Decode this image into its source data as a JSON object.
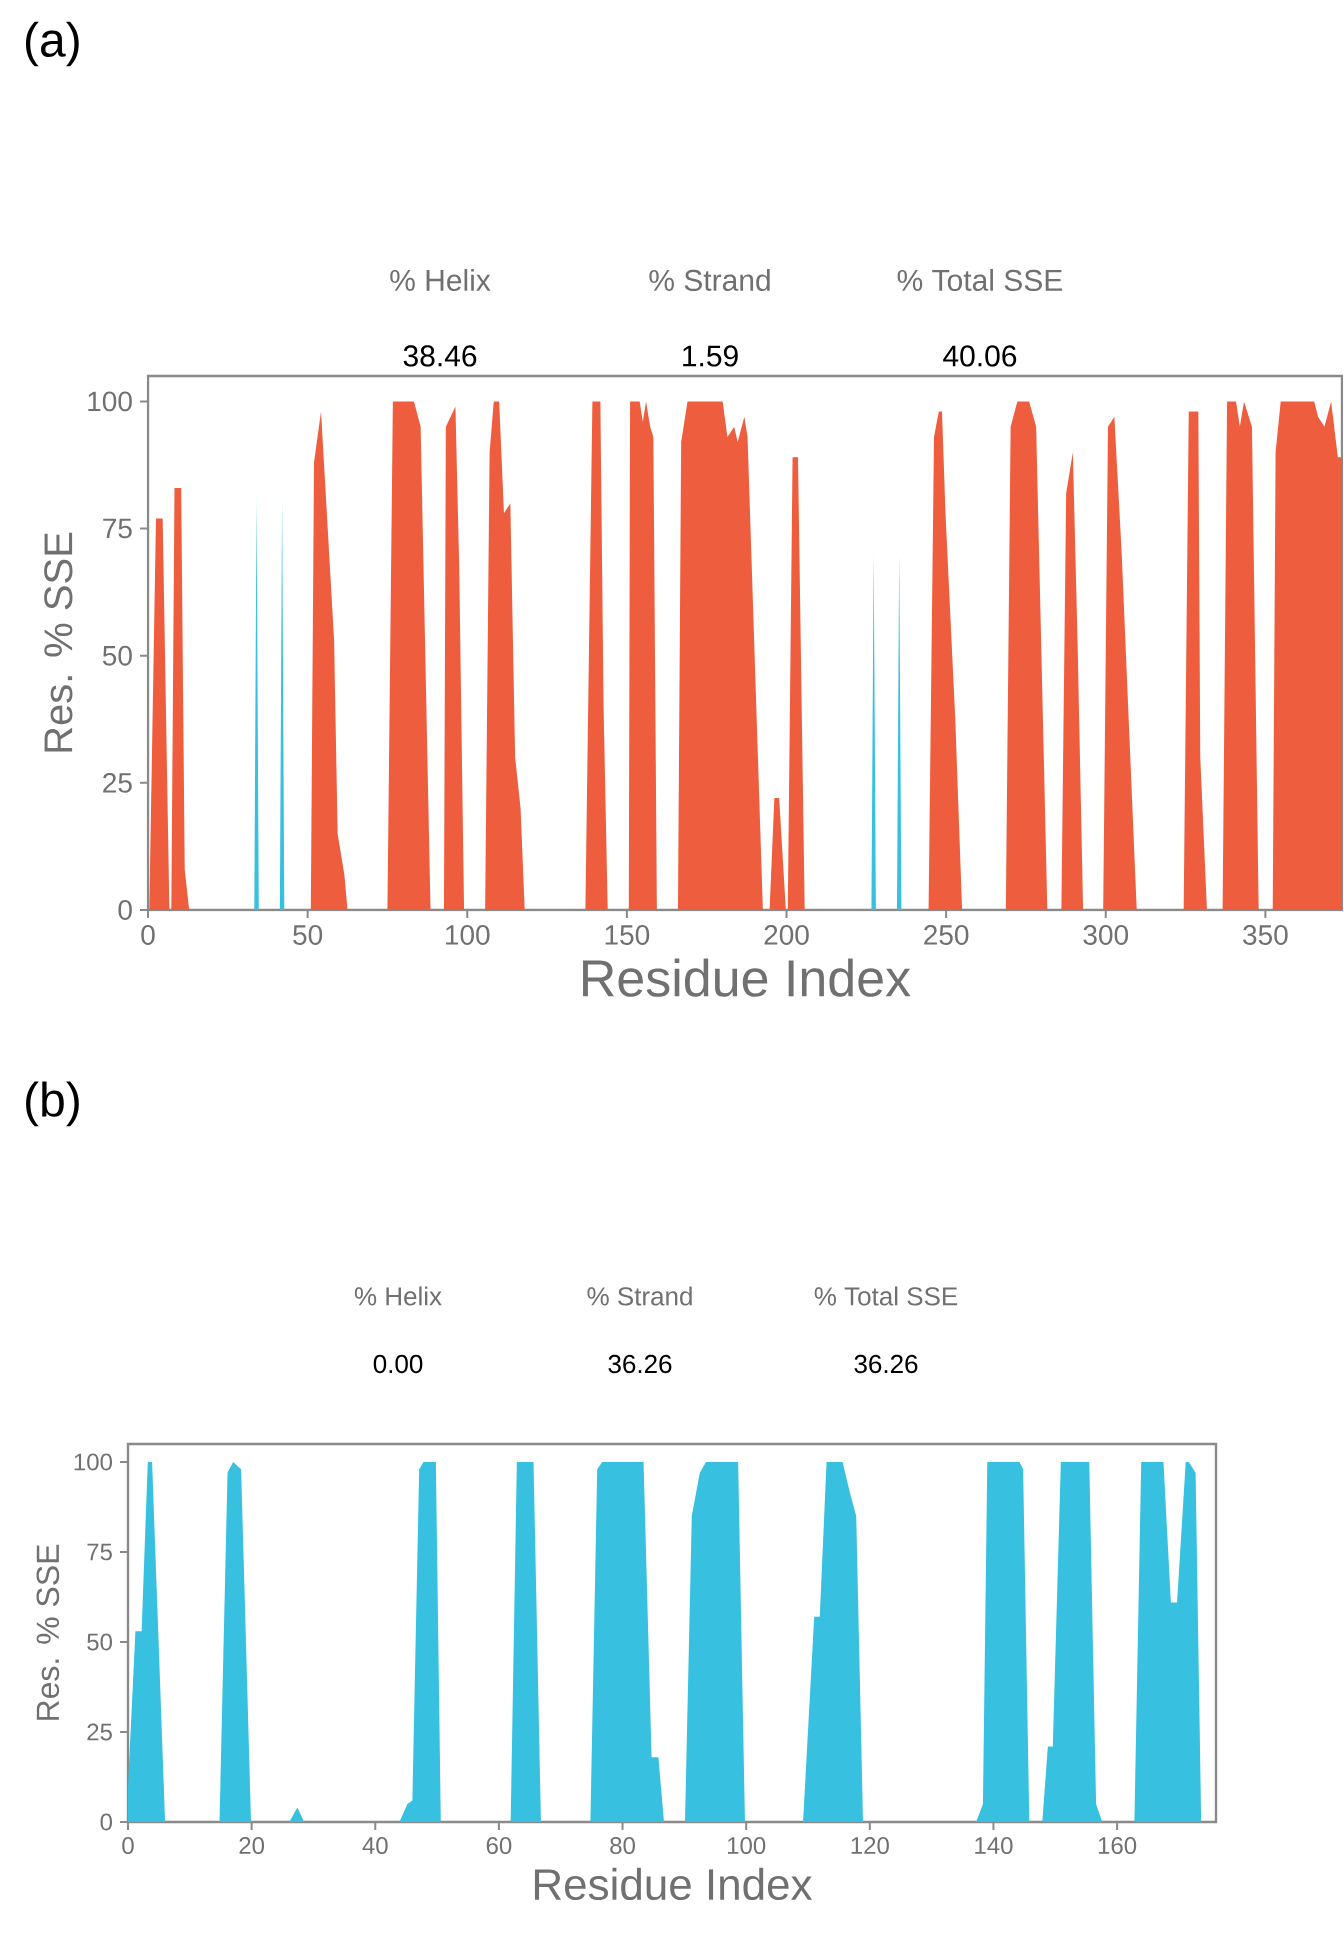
{
  "chart_data": [
    {
      "type": "area",
      "title": "(a)",
      "xlabel": "Residue Index",
      "ylabel": "Res. % SSE",
      "annotations": [
        "% Helix",
        "% Strand",
        "% Total SSE",
        "38.46",
        "1.59",
        "40.06"
      ],
      "xlim": [
        0,
        374
      ],
      "xticks": [
        0,
        50,
        100,
        150,
        200,
        250,
        300,
        350
      ],
      "ylim": [
        0,
        105
      ],
      "yticks": [
        0,
        25,
        50,
        75,
        100
      ],
      "series": [
        {
          "color": "#ee5e3e",
          "x": [
            0.4,
            2.5,
            4.6,
            6.7,
            7.3,
            8.3,
            10.4,
            11.5,
            12.9,
            51,
            52,
            54.2,
            58.3,
            59.4,
            61.5,
            62.5,
            75,
            76.7,
            83.3,
            85.4,
            88.5,
            92.7,
            93.3,
            96.3,
            97.5,
            99,
            105.6,
            107,
            108.3,
            110,
            111.5,
            113.5,
            115,
            116.7,
            118,
            137,
            139.2,
            141.7,
            142.7,
            144,
            150.6,
            151,
            154,
            155,
            156,
            157.3,
            158.3,
            159.4,
            166,
            167,
            169,
            180,
            181.5,
            183.6,
            184.7,
            186.8,
            187.8,
            192.6,
            194.7,
            196.2,
            197.7,
            199.8,
            200.4,
            201.9,
            203.6,
            205.7,
            244.5,
            246.2,
            247.7,
            248.7,
            249.8,
            252.9,
            255,
            268.7,
            270.2,
            272.3,
            276,
            278.2,
            281.7,
            286.1,
            287.6,
            289.7,
            291.2,
            292.9,
            299.2,
            300.7,
            302.7,
            305,
            309.7,
            324.4,
            326,
            329,
            329.6,
            331.7,
            336.6,
            338,
            340.8,
            342,
            343.3,
            345.8,
            347.9,
            352.3,
            353.2,
            354.8,
            365.3,
            366.5,
            368.5,
            370.6,
            372.7,
            374
          ],
          "values": [
            0,
            77,
            77,
            0,
            0,
            83,
            83,
            8,
            0,
            0,
            88,
            98,
            53,
            15,
            7,
            0,
            0,
            100,
            100,
            95,
            0,
            0,
            95,
            99,
            67,
            0,
            0,
            90,
            100,
            100,
            78,
            80,
            30,
            20,
            0,
            0,
            100,
            100,
            40,
            0,
            0,
            100,
            100,
            96,
            100,
            95,
            93,
            0,
            0,
            92,
            100,
            100,
            93,
            95,
            92,
            97,
            93,
            0,
            0,
            22,
            22,
            0,
            0,
            89,
            89,
            0,
            0,
            93,
            98,
            98,
            78,
            37,
            0,
            0,
            95,
            100,
            100,
            95,
            0,
            0,
            82,
            90,
            52,
            0,
            0,
            95,
            97,
            70,
            0,
            0,
            98,
            98,
            30,
            0,
            0,
            100,
            100,
            95,
            100,
            95,
            0,
            0,
            90,
            100,
            100,
            97,
            95,
            100,
            89,
            89
          ]
        },
        {
          "color": "#38c0e0",
          "x": [
            33.3,
            34,
            34.7,
            41.3,
            42,
            42.7,
            226.6,
            227.3,
            228,
            234.6,
            235.3,
            236
          ],
          "values": [
            0,
            81,
            0,
            0,
            81,
            0,
            0,
            70,
            0,
            0,
            70,
            0
          ]
        }
      ]
    },
    {
      "type": "area",
      "title": "(b)",
      "xlabel": "Residue Index",
      "ylabel": "Res. % SSE",
      "annotations": [
        "% Helix",
        "% Strand",
        "% Total SSE",
        "0.00",
        "36.26",
        "36.26"
      ],
      "xlim": [
        0,
        176
      ],
      "xticks": [
        0,
        20,
        40,
        60,
        80,
        100,
        120,
        140,
        160
      ],
      "ylim": [
        0,
        105
      ],
      "yticks": [
        0,
        25,
        50,
        75,
        100
      ],
      "series": [
        {
          "color": "#38c0e0",
          "x": [
            0,
            1.2,
            2.2,
            3.2,
            3.9,
            6,
            14.8,
            16.1,
            17,
            18.3,
            19.9,
            26.1,
            27.4,
            28.5,
            43.9,
            45.2,
            46,
            47.1,
            47.8,
            49.8,
            50.6,
            61.9,
            62.9,
            65.6,
            66.8,
            74.8,
            75.9,
            76.7,
            83.4,
            84.7,
            85.8,
            86.7,
            90.1,
            91.2,
            92.5,
            93.5,
            98.7,
            99.8,
            109.2,
            111,
            111.9,
            113,
            115.6,
            116.7,
            117.8,
            118.9,
            137.2,
            138.3,
            139,
            144.2,
            144.8,
            145.8,
            147.9,
            148.8,
            149.6,
            150.9,
            155.5,
            156.6,
            157.6,
            162.8,
            163.9,
            167.5,
            168.7,
            169.7,
            171.1,
            171.6,
            172.7,
            173.6
          ],
          "values": [
            10,
            53,
            53,
            100,
            100,
            0,
            0,
            97,
            100,
            98,
            0,
            0,
            4,
            0,
            0,
            5,
            6,
            98,
            100,
            100,
            0,
            0,
            100,
            100,
            0,
            0,
            98,
            100,
            100,
            18,
            18,
            0,
            0,
            85,
            97,
            100,
            100,
            0,
            0,
            57,
            57,
            100,
            100,
            92,
            85,
            0,
            0,
            5,
            100,
            100,
            98,
            0,
            0,
            21,
            21,
            100,
            100,
            5,
            0,
            0,
            100,
            100,
            61,
            61,
            100,
            100,
            97,
            0
          ]
        }
      ]
    }
  ]
}
